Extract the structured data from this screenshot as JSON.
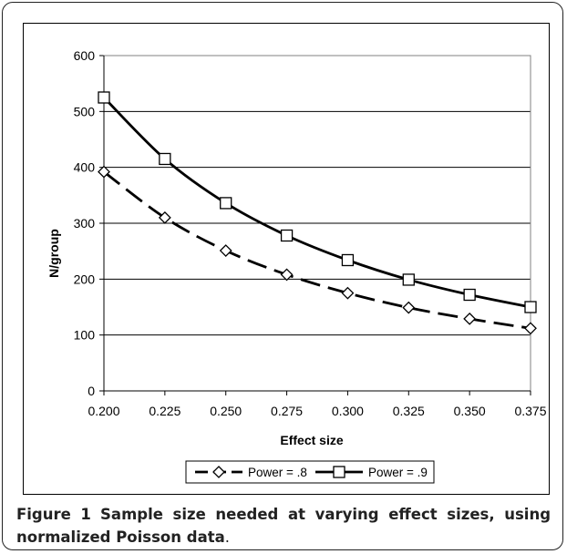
{
  "caption": {
    "figure_label": "Figure 1",
    "text": "Sample size needed at varying effect sizes, using normalized Poisson data",
    "period": "."
  },
  "chart_data": {
    "type": "line",
    "xlabel": "Effect size",
    "ylabel": "N/group",
    "x": [
      0.2,
      0.225,
      0.25,
      0.275,
      0.3,
      0.325,
      0.35,
      0.375
    ],
    "x_tick_labels": [
      "0.200",
      "0.225",
      "0.250",
      "0.275",
      "0.300",
      "0.325",
      "0.350",
      "0.375"
    ],
    "ylim": [
      0,
      600
    ],
    "y_ticks": [
      0,
      100,
      200,
      300,
      400,
      500,
      600
    ],
    "grid": "horizontal",
    "legend_position": "bottom",
    "series": [
      {
        "name": "Power = .8",
        "marker": "diamond",
        "line": "dashed",
        "values": [
          392,
          310,
          251,
          208,
          175,
          149,
          129,
          112
        ]
      },
      {
        "name": "Power = .9",
        "marker": "square",
        "line": "solid",
        "values": [
          525,
          415,
          336,
          278,
          234,
          199,
          172,
          150
        ]
      }
    ]
  }
}
